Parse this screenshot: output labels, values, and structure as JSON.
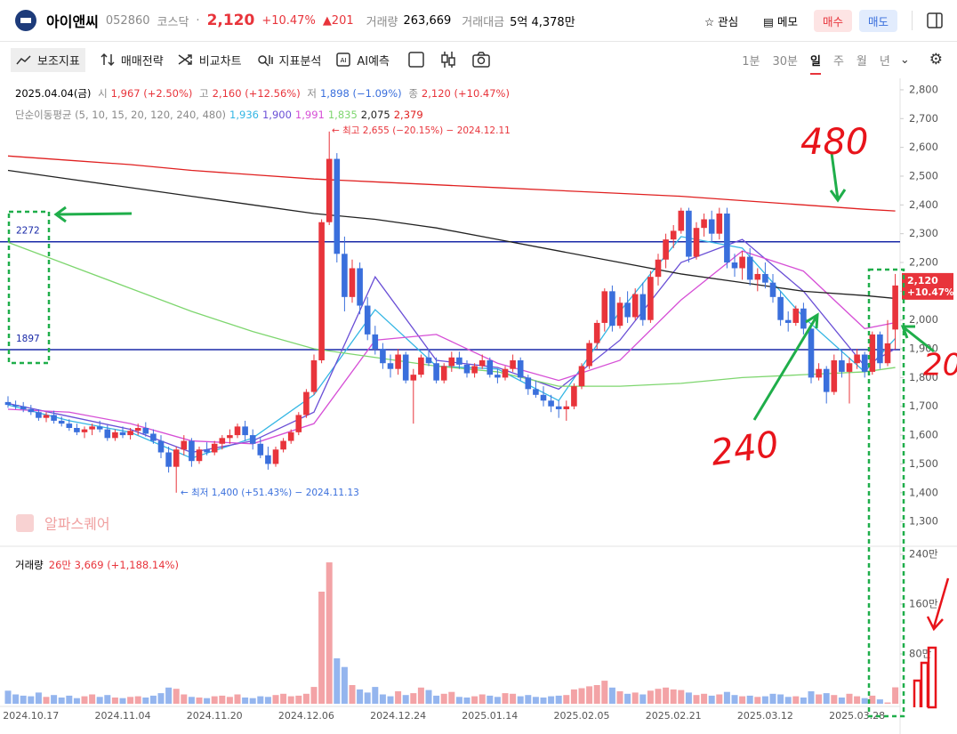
{
  "header": {
    "name": "아이앤씨",
    "code": "052860",
    "market": "코스닥",
    "price": "2,120",
    "change_pct": "+10.47%",
    "change": "▲201",
    "volume_label": "거래량",
    "volume": "263,669",
    "amount_label": "거래대금",
    "amount": "5억 4,378만",
    "buttons": [
      "관심",
      "메모",
      "매수",
      "매도"
    ]
  },
  "toolbar": {
    "tools": [
      "보조지표",
      "매매전략",
      "비교차트",
      "지표분석",
      "AI예측"
    ],
    "periods": [
      "1분",
      "30분",
      "일",
      "주",
      "월",
      "년"
    ]
  },
  "handwritten": [
    "480",
    "240",
    "20"
  ],
  "chart_data": {
    "type": "candlestick",
    "info": {
      "date": "2025.04.04(금)",
      "labels": [
        "시",
        "고",
        "저",
        "종"
      ],
      "values": [
        "1,967 (+2.50%)",
        "2,160 (+12.56%)",
        "1,898 (−1.09%)",
        "2,120 (+10.47%)"
      ]
    },
    "ma_title": "단순이동평균 (5, 10, 15, 20, 120, 240, 480)",
    "up_color": "#e8343b",
    "down_color": "#3a6fdc",
    "vol_up_color": "#f3a3a6",
    "vol_down_color": "#94b5ee",
    "categories": [
      null,
      null,
      null,
      "2024.10.17",
      null,
      null,
      null,
      null,
      null,
      null,
      null,
      null,
      null,
      null,
      null,
      "2024.11.04",
      null,
      null,
      null,
      null,
      null,
      null,
      null,
      null,
      null,
      null,
      null,
      "2024.11.20",
      null,
      null,
      null,
      null,
      null,
      null,
      null,
      null,
      null,
      null,
      null,
      "2024.12.06",
      null,
      null,
      null,
      null,
      null,
      null,
      null,
      null,
      null,
      null,
      null,
      "2024.12.24",
      null,
      null,
      null,
      null,
      null,
      null,
      null,
      null,
      null,
      null,
      null,
      "2025.01.14",
      null,
      null,
      null,
      null,
      null,
      null,
      null,
      null,
      null,
      null,
      null,
      "2025.02.05",
      null,
      null,
      null,
      null,
      null,
      null,
      null,
      null,
      null,
      null,
      null,
      "2025.02.21",
      null,
      null,
      null,
      null,
      null,
      null,
      null,
      null,
      null,
      null,
      null,
      "2025.03.12",
      null,
      null,
      null,
      null,
      null,
      null,
      null,
      null,
      null,
      null,
      null,
      "2025.03.28",
      null,
      null,
      null,
      null,
      null
    ],
    "candles": [
      [
        1715,
        1735,
        1695,
        1705
      ],
      [
        1705,
        1720,
        1690,
        1700
      ],
      [
        1700,
        1715,
        1680,
        1690
      ],
      [
        1690,
        1705,
        1670,
        1680
      ],
      [
        1680,
        1690,
        1650,
        1660
      ],
      [
        1660,
        1680,
        1645,
        1670
      ],
      [
        1670,
        1685,
        1640,
        1650
      ],
      [
        1650,
        1665,
        1630,
        1640
      ],
      [
        1640,
        1655,
        1615,
        1625
      ],
      [
        1625,
        1640,
        1600,
        1610
      ],
      [
        1610,
        1630,
        1590,
        1620
      ],
      [
        1620,
        1640,
        1600,
        1630
      ],
      [
        1630,
        1650,
        1610,
        1620
      ],
      [
        1620,
        1635,
        1580,
        1590
      ],
      [
        1590,
        1620,
        1580,
        1610
      ],
      [
        1610,
        1630,
        1590,
        1600
      ],
      [
        1600,
        1625,
        1585,
        1615
      ],
      [
        1615,
        1640,
        1600,
        1625
      ],
      [
        1625,
        1645,
        1595,
        1605
      ],
      [
        1605,
        1620,
        1570,
        1580
      ],
      [
        1580,
        1600,
        1520,
        1540
      ],
      [
        1540,
        1560,
        1470,
        1490
      ],
      [
        1490,
        1560,
        1400,
        1550
      ],
      [
        1550,
        1600,
        1530,
        1580
      ],
      [
        1580,
        1590,
        1490,
        1510
      ],
      [
        1510,
        1560,
        1500,
        1550
      ],
      [
        1550,
        1575,
        1530,
        1540
      ],
      [
        1540,
        1580,
        1530,
        1570
      ],
      [
        1570,
        1600,
        1550,
        1590
      ],
      [
        1590,
        1620,
        1570,
        1600
      ],
      [
        1600,
        1640,
        1590,
        1630
      ],
      [
        1630,
        1650,
        1580,
        1600
      ],
      [
        1600,
        1620,
        1550,
        1570
      ],
      [
        1570,
        1590,
        1520,
        1530
      ],
      [
        1530,
        1560,
        1480,
        1500
      ],
      [
        1500,
        1560,
        1490,
        1550
      ],
      [
        1550,
        1590,
        1540,
        1580
      ],
      [
        1580,
        1620,
        1570,
        1610
      ],
      [
        1610,
        1680,
        1600,
        1670
      ],
      [
        1670,
        1760,
        1660,
        1750
      ],
      [
        1750,
        1880,
        1740,
        1860
      ],
      [
        1860,
        2350,
        1850,
        2340
      ],
      [
        2340,
        2655,
        2330,
        2560
      ],
      [
        2560,
        2580,
        2200,
        2230
      ],
      [
        2230,
        2290,
        2030,
        2080
      ],
      [
        2080,
        2210,
        2060,
        2180
      ],
      [
        2180,
        2200,
        2020,
        2050
      ],
      [
        2050,
        2080,
        1930,
        1950
      ],
      [
        1950,
        1980,
        1880,
        1900
      ],
      [
        1900,
        1920,
        1830,
        1850
      ],
      [
        1850,
        1880,
        1800,
        1830
      ],
      [
        1830,
        1900,
        1810,
        1880
      ],
      [
        1880,
        1890,
        1780,
        1790
      ],
      [
        1790,
        1830,
        1640,
        1810
      ],
      [
        1810,
        1880,
        1800,
        1870
      ],
      [
        1870,
        1900,
        1840,
        1850
      ],
      [
        1850,
        1870,
        1780,
        1790
      ],
      [
        1790,
        1850,
        1780,
        1840
      ],
      [
        1840,
        1890,
        1820,
        1870
      ],
      [
        1870,
        1890,
        1830,
        1845
      ],
      [
        1845,
        1860,
        1800,
        1815
      ],
      [
        1815,
        1850,
        1800,
        1840
      ],
      [
        1840,
        1880,
        1830,
        1860
      ],
      [
        1860,
        1870,
        1800,
        1810
      ],
      [
        1810,
        1830,
        1780,
        1800
      ],
      [
        1800,
        1840,
        1790,
        1830
      ],
      [
        1830,
        1880,
        1820,
        1860
      ],
      [
        1860,
        1870,
        1790,
        1800
      ],
      [
        1800,
        1810,
        1740,
        1760
      ],
      [
        1760,
        1790,
        1730,
        1740
      ],
      [
        1740,
        1770,
        1700,
        1720
      ],
      [
        1720,
        1740,
        1680,
        1700
      ],
      [
        1700,
        1720,
        1660,
        1690
      ],
      [
        1690,
        1720,
        1650,
        1700
      ],
      [
        1700,
        1780,
        1690,
        1770
      ],
      [
        1770,
        1850,
        1760,
        1840
      ],
      [
        1840,
        1930,
        1830,
        1920
      ],
      [
        1920,
        2000,
        1900,
        1990
      ],
      [
        1990,
        2110,
        1960,
        2100
      ],
      [
        2100,
        2120,
        1960,
        1980
      ],
      [
        1980,
        2080,
        1970,
        2060
      ],
      [
        2060,
        2100,
        1990,
        2010
      ],
      [
        2010,
        2110,
        2000,
        2090
      ],
      [
        2090,
        2130,
        1980,
        2000
      ],
      [
        2000,
        2170,
        1990,
        2150
      ],
      [
        2150,
        2230,
        2120,
        2210
      ],
      [
        2210,
        2300,
        2180,
        2280
      ],
      [
        2280,
        2330,
        2250,
        2310
      ],
      [
        2310,
        2390,
        2300,
        2380
      ],
      [
        2380,
        2390,
        2200,
        2220
      ],
      [
        2220,
        2340,
        2210,
        2320
      ],
      [
        2320,
        2370,
        2290,
        2350
      ],
      [
        2350,
        2380,
        2270,
        2300
      ],
      [
        2300,
        2390,
        2280,
        2370
      ],
      [
        2370,
        2390,
        2180,
        2200
      ],
      [
        2200,
        2230,
        2150,
        2180
      ],
      [
        2180,
        2240,
        2140,
        2220
      ],
      [
        2220,
        2250,
        2120,
        2140
      ],
      [
        2140,
        2180,
        2100,
        2160
      ],
      [
        2160,
        2200,
        2110,
        2130
      ],
      [
        2130,
        2160,
        2060,
        2080
      ],
      [
        2080,
        2100,
        1980,
        2000
      ],
      [
        2000,
        2030,
        1960,
        1990
      ],
      [
        1990,
        2050,
        1980,
        2040
      ],
      [
        2040,
        2060,
        1950,
        1970
      ],
      [
        1970,
        1990,
        1780,
        1800
      ],
      [
        1800,
        1850,
        1790,
        1830
      ],
      [
        1830,
        1840,
        1710,
        1750
      ],
      [
        1750,
        1880,
        1740,
        1860
      ],
      [
        1860,
        1900,
        1800,
        1820
      ],
      [
        1820,
        1870,
        1710,
        1850
      ],
      [
        1850,
        1900,
        1830,
        1880
      ],
      [
        1880,
        1890,
        1800,
        1820
      ],
      [
        1820,
        1960,
        1810,
        1950
      ],
      [
        1950,
        1960,
        1830,
        1850
      ],
      [
        1850,
        2000,
        1840,
        1919
      ],
      [
        1967,
        2160,
        1898,
        2120
      ]
    ],
    "moving_averages": [
      {
        "label": "1,936",
        "color": "#34b6e4",
        "x": [
          0,
          8,
          16,
          24,
          32,
          40,
          48,
          56,
          64,
          72,
          80,
          88,
          96,
          104,
          112,
          116
        ],
        "values": [
          1705,
          1650,
          1610,
          1520,
          1590,
          1740,
          2036,
          1840,
          1830,
          1720,
          2030,
          2290,
          2250,
          2010,
          1820,
          1936
        ]
      },
      {
        "label": "1,900",
        "color": "#6a4fd6",
        "x": [
          0,
          8,
          16,
          24,
          32,
          40,
          48,
          56,
          64,
          72,
          80,
          88,
          96,
          104,
          112,
          116
        ],
        "values": [
          1710,
          1665,
          1620,
          1540,
          1580,
          1680,
          2150,
          1860,
          1835,
          1760,
          1930,
          2200,
          2280,
          2100,
          1840,
          1900
        ]
      },
      {
        "label": "1,991",
        "color": "#d64fd6",
        "x": [
          0,
          8,
          16,
          24,
          32,
          40,
          48,
          56,
          64,
          72,
          80,
          88,
          96,
          104,
          112,
          116
        ],
        "values": [
          1690,
          1680,
          1640,
          1580,
          1570,
          1640,
          1930,
          1950,
          1850,
          1790,
          1860,
          2070,
          2240,
          2170,
          1970,
          1991
        ]
      },
      {
        "label": "1,835",
        "color": "#7ed66f",
        "x": [
          0,
          8,
          16,
          24,
          32,
          40,
          48,
          56,
          64,
          72,
          80,
          88,
          96,
          104,
          112,
          116
        ],
        "values": [
          2270,
          2190,
          2110,
          2030,
          1960,
          1900,
          1870,
          1840,
          1820,
          1770,
          1770,
          1780,
          1800,
          1810,
          1820,
          1835
        ]
      },
      {
        "label": "2,075",
        "color": "#222222",
        "x": [
          0,
          8,
          16,
          24,
          32,
          40,
          48,
          56,
          64,
          72,
          80,
          88,
          96,
          104,
          112,
          116
        ],
        "values": [
          2520,
          2490,
          2460,
          2430,
          2400,
          2370,
          2350,
          2320,
          2280,
          2240,
          2200,
          2160,
          2130,
          2100,
          2085,
          2075
        ]
      },
      {
        "label": "2,379",
        "color": "#e02020",
        "x": [
          0,
          8,
          16,
          24,
          32,
          40,
          48,
          56,
          64,
          72,
          80,
          88,
          96,
          104,
          112,
          116
        ],
        "values": [
          2570,
          2555,
          2540,
          2520,
          2505,
          2490,
          2480,
          2470,
          2460,
          2450,
          2440,
          2430,
          2415,
          2400,
          2385,
          2379
        ]
      }
    ],
    "hlines": [
      {
        "value": 2272,
        "color": "#1a2aa8"
      },
      {
        "value": 1897,
        "color": "#1a2aa8"
      }
    ],
    "high_note": "← 최고 2,655 (−20.15%) − 2024.12.11",
    "low_note": "← 최저 1,400 (+51.43%) − 2024.11.13",
    "watermark": "알파스퀘어",
    "last_price": "2,120",
    "last_change": "+10.47%",
    "ylim": [
      1220,
      2840
    ],
    "yticks": [
      {
        "value": 1300,
        "label": "1,300"
      },
      {
        "value": 1400,
        "label": "1,400"
      },
      {
        "value": 1500,
        "label": "1,500"
      },
      {
        "value": 1600,
        "label": "1,600"
      },
      {
        "value": 1700,
        "label": "1,700"
      },
      {
        "value": 1800,
        "label": "1,800"
      },
      {
        "value": 1900,
        "label": "1,900"
      },
      {
        "value": 2000,
        "label": "2,000"
      },
      {
        "value": 2100,
        "label": "2,100"
      },
      {
        "value": 2200,
        "label": "2,200"
      },
      {
        "value": 2300,
        "label": "2,300"
      },
      {
        "value": 2400,
        "label": "2,400"
      },
      {
        "value": 2500,
        "label": "2,500"
      },
      {
        "value": 2600,
        "label": "2,600"
      },
      {
        "value": 2700,
        "label": "2,700"
      },
      {
        "value": 2800,
        "label": "2,800"
      }
    ],
    "volume_title": "거래량",
    "volume_info": "26만 3,669 (+1,188.14%)",
    "volume": [
      210000,
      150000,
      130000,
      120000,
      180000,
      110000,
      140000,
      100000,
      130000,
      90000,
      120000,
      150000,
      110000,
      140000,
      100000,
      90000,
      110000,
      120000,
      100000,
      130000,
      170000,
      260000,
      240000,
      150000,
      110000,
      100000,
      90000,
      120000,
      130000,
      110000,
      150000,
      100000,
      90000,
      120000,
      110000,
      140000,
      160000,
      120000,
      130000,
      160000,
      270000,
      1800000,
      2270000,
      730000,
      590000,
      300000,
      230000,
      180000,
      270000,
      150000,
      120000,
      200000,
      140000,
      170000,
      260000,
      220000,
      130000,
      160000,
      190000,
      110000,
      100000,
      120000,
      150000,
      130000,
      110000,
      170000,
      160000,
      120000,
      140000,
      110000,
      100000,
      120000,
      130000,
      140000,
      230000,
      250000,
      280000,
      300000,
      370000,
      260000,
      200000,
      160000,
      180000,
      150000,
      210000,
      240000,
      260000,
      230000,
      220000,
      180000,
      140000,
      160000,
      130000,
      150000,
      190000,
      140000,
      120000,
      130000,
      110000,
      120000,
      160000,
      150000,
      110000,
      120000,
      100000,
      200000,
      150000,
      170000,
      140000,
      100000,
      160000,
      120000,
      90000,
      130000,
      70000,
      20469,
      263669
    ],
    "vol_ylim": [
      0,
      2500000
    ],
    "vol_yticks": [
      {
        "value": 800000,
        "label": "80만"
      },
      {
        "value": 1600000,
        "label": "160만"
      },
      {
        "value": 2400000,
        "label": "240만"
      }
    ]
  }
}
